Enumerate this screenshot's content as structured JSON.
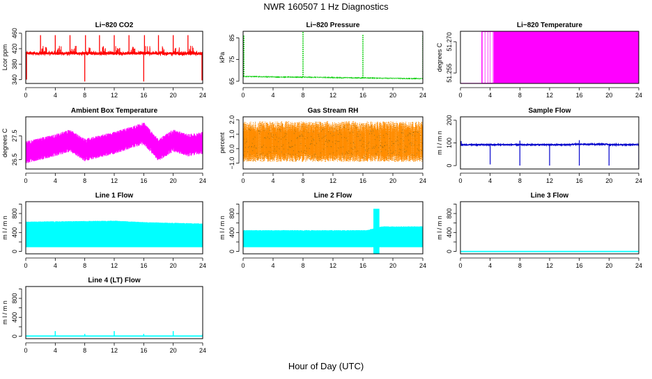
{
  "page": {
    "title": "NWR  160507  1 Hz Diagnostics",
    "xlabel": "Hour of Day (UTC)"
  },
  "chart_data": [
    {
      "type": "line",
      "id": "co2",
      "title": "Li−820 CO2",
      "ylabel": "Lcor ppm",
      "color": "#ff0000",
      "xlim": [
        0,
        24
      ],
      "ylim": [
        330,
        465
      ],
      "xticks": [
        0,
        4,
        8,
        12,
        16,
        20,
        24
      ],
      "yticks": [
        340,
        380,
        420,
        460
      ],
      "baseline": 408,
      "noise": 3,
      "spikes": [
        {
          "x": 0.1,
          "y": 340
        },
        {
          "x": 2.0,
          "y": 455
        },
        {
          "x": 4.0,
          "y": 455
        },
        {
          "x": 6.0,
          "y": 455
        },
        {
          "x": 8.0,
          "y": 335
        },
        {
          "x": 8.1,
          "y": 455
        },
        {
          "x": 10.0,
          "y": 455
        },
        {
          "x": 12.0,
          "y": 455
        },
        {
          "x": 14.0,
          "y": 455
        },
        {
          "x": 16.0,
          "y": 335
        },
        {
          "x": 16.1,
          "y": 455
        },
        {
          "x": 18.0,
          "y": 455
        },
        {
          "x": 20.0,
          "y": 455
        },
        {
          "x": 22.0,
          "y": 455
        },
        {
          "x": 23.9,
          "y": 338
        }
      ]
    },
    {
      "type": "line",
      "id": "pressure",
      "title": "Li−820 Pressure",
      "ylabel": "kPa",
      "color": "#00cc00",
      "xlim": [
        0,
        24
      ],
      "ylim": [
        64,
        88
      ],
      "xticks": [
        0,
        4,
        8,
        12,
        16,
        20,
        24
      ],
      "yticks": [
        65,
        75,
        85
      ],
      "trend": [
        {
          "x": 0,
          "y": 67.2
        },
        {
          "x": 24,
          "y": 66.2
        }
      ],
      "noise": 0.1,
      "spikes": [
        {
          "x": 0.1,
          "y": 86
        },
        {
          "x": 8.0,
          "y": 88
        },
        {
          "x": 16.0,
          "y": 86.5
        },
        {
          "x": 24.0,
          "y": 86
        }
      ]
    },
    {
      "type": "line",
      "id": "temperature",
      "title": "Li−820 Temperature",
      "ylabel": "degrees C",
      "color": "#ff00ff",
      "xlim": [
        0,
        24
      ],
      "ylim": [
        51.25,
        51.275
      ],
      "xticks": [
        0,
        4,
        8,
        12,
        16,
        20,
        24
      ],
      "yticks": [
        51.255,
        51.27
      ],
      "ytick_labels": [
        "51.255",
        "51.270"
      ],
      "low_value": 51.25,
      "high_value": 51.275,
      "switch_on_x": 2.9,
      "dense_from_x": 4.5
    },
    {
      "type": "line",
      "id": "ambient",
      "title": "Ambient Box Temperature",
      "ylabel": "degrees C",
      "color": "#ff00ff",
      "xlim": [
        0,
        24
      ],
      "ylim": [
        26.1,
        28.3
      ],
      "xticks": [
        0,
        4,
        8,
        12,
        16,
        20,
        24
      ],
      "yticks": [
        26.5,
        27.5
      ],
      "band_center": [
        {
          "x": 0,
          "y": 26.8
        },
        {
          "x": 4,
          "y": 27.1
        },
        {
          "x": 6,
          "y": 27.3
        },
        {
          "x": 8,
          "y": 26.9
        },
        {
          "x": 12,
          "y": 27.2
        },
        {
          "x": 16,
          "y": 27.6
        },
        {
          "x": 18,
          "y": 26.9
        },
        {
          "x": 20,
          "y": 27.3
        },
        {
          "x": 22,
          "y": 27.1
        },
        {
          "x": 24,
          "y": 27.2
        }
      ],
      "band_halfwidth": 0.45
    },
    {
      "type": "line",
      "id": "rh",
      "title": "Gas Stream RH",
      "ylabel": "percent",
      "color": "#ff8c00",
      "xlim": [
        0,
        24
      ],
      "ylim": [
        -1.4,
        2.2
      ],
      "xticks": [
        0,
        4,
        8,
        12,
        16,
        20,
        24
      ],
      "yticks": [
        -1.0,
        0.0,
        1.0,
        2.0
      ],
      "ytick_labels": [
        "−1.0",
        "0.0",
        "1.0",
        "2.0"
      ],
      "band_low": -0.9,
      "band_high": 1.9,
      "overlay_color": "#8b6914"
    },
    {
      "type": "line",
      "id": "sample",
      "title": "Sample Flow",
      "ylabel": "m l / m n",
      "color": "#0000cc",
      "xlim": [
        0,
        24
      ],
      "ylim": [
        -15,
        215
      ],
      "xticks": [
        0,
        4,
        8,
        12,
        16,
        20,
        24
      ],
      "yticks": [
        0,
        100,
        200
      ],
      "baseline": 92,
      "noise": 2,
      "drops": [
        {
          "x": 4.0,
          "y": 5
        },
        {
          "x": 8.0,
          "y": 0
        },
        {
          "x": 12.0,
          "y": 0
        },
        {
          "x": 16.0,
          "y": 0
        },
        {
          "x": 20.0,
          "y": 0
        },
        {
          "x": 24.0,
          "y": 0
        }
      ],
      "peaks": [
        {
          "x": 0.1,
          "y": 108
        },
        {
          "x": 8.0,
          "y": 110
        },
        {
          "x": 16.0,
          "y": 112
        }
      ]
    },
    {
      "type": "area",
      "id": "line1",
      "title": "Line 1 Flow",
      "ylabel": "m l / m n",
      "color": "#00ffff",
      "xlim": [
        0,
        24
      ],
      "ylim": [
        -50,
        1050
      ],
      "xticks": [
        0,
        4,
        8,
        12,
        16,
        20,
        24
      ],
      "yticks": [
        0,
        200,
        400,
        600,
        800,
        1000
      ],
      "ytick_labels": [
        "0",
        "",
        "400",
        "",
        "800",
        ""
      ],
      "band_low": [
        {
          "x": 0,
          "y": 90
        },
        {
          "x": 24,
          "y": 90
        }
      ],
      "band_high": [
        {
          "x": 0,
          "y": 620
        },
        {
          "x": 12,
          "y": 640
        },
        {
          "x": 16,
          "y": 610
        },
        {
          "x": 24,
          "y": 580
        }
      ],
      "gaps": [
        3.9,
        8.0,
        12.0,
        16.0,
        20.0
      ]
    },
    {
      "type": "area",
      "id": "line2",
      "title": "Line 2 Flow",
      "ylabel": "m l / m n",
      "color": "#00ffff",
      "xlim": [
        0,
        24
      ],
      "ylim": [
        -50,
        1050
      ],
      "xticks": [
        0,
        4,
        8,
        12,
        16,
        20,
        24
      ],
      "yticks": [
        0,
        200,
        400,
        600,
        800,
        1000
      ],
      "ytick_labels": [
        "0",
        "",
        "400",
        "",
        "800",
        ""
      ],
      "band_low": [
        {
          "x": 0,
          "y": 90
        },
        {
          "x": 24,
          "y": 90
        }
      ],
      "band_high": [
        {
          "x": 0,
          "y": 440
        },
        {
          "x": 16.5,
          "y": 440
        },
        {
          "x": 18.5,
          "y": 520
        },
        {
          "x": 24,
          "y": 520
        }
      ],
      "event": {
        "x_start": 17.4,
        "x_end": 18.2,
        "low": -60,
        "high": 900
      },
      "gaps": [
        4.0,
        8.0,
        12.0,
        16.0,
        20.0
      ]
    },
    {
      "type": "line",
      "id": "line3",
      "title": "Line 3 Flow",
      "ylabel": "m l / m n",
      "color": "#00ffff",
      "xlim": [
        0,
        24
      ],
      "ylim": [
        -50,
        1050
      ],
      "xticks": [
        0,
        4,
        8,
        12,
        16,
        20,
        24
      ],
      "yticks": [
        0,
        200,
        400,
        600,
        800,
        1000
      ],
      "ytick_labels": [
        "0",
        "",
        "400",
        "",
        "800",
        ""
      ],
      "baseline": 0
    },
    {
      "type": "line",
      "id": "line4",
      "title": "Line 4 (LT) Flow",
      "ylabel": "m l / m n",
      "color": "#00ffff",
      "xlim": [
        0,
        24
      ],
      "ylim": [
        -50,
        1050
      ],
      "xticks": [
        0,
        4,
        8,
        12,
        16,
        20,
        24
      ],
      "yticks": [
        0,
        200,
        400,
        600,
        800,
        1000
      ],
      "ytick_labels": [
        "0",
        "",
        "400",
        "",
        "800",
        ""
      ],
      "baseline": 5,
      "spikes": [
        {
          "x": 4.0,
          "y": 110
        },
        {
          "x": 8.0,
          "y": 50
        },
        {
          "x": 12.0,
          "y": 110
        },
        {
          "x": 16.0,
          "y": 50
        },
        {
          "x": 20.0,
          "y": 110
        },
        {
          "x": 24.0,
          "y": 50
        }
      ]
    }
  ]
}
